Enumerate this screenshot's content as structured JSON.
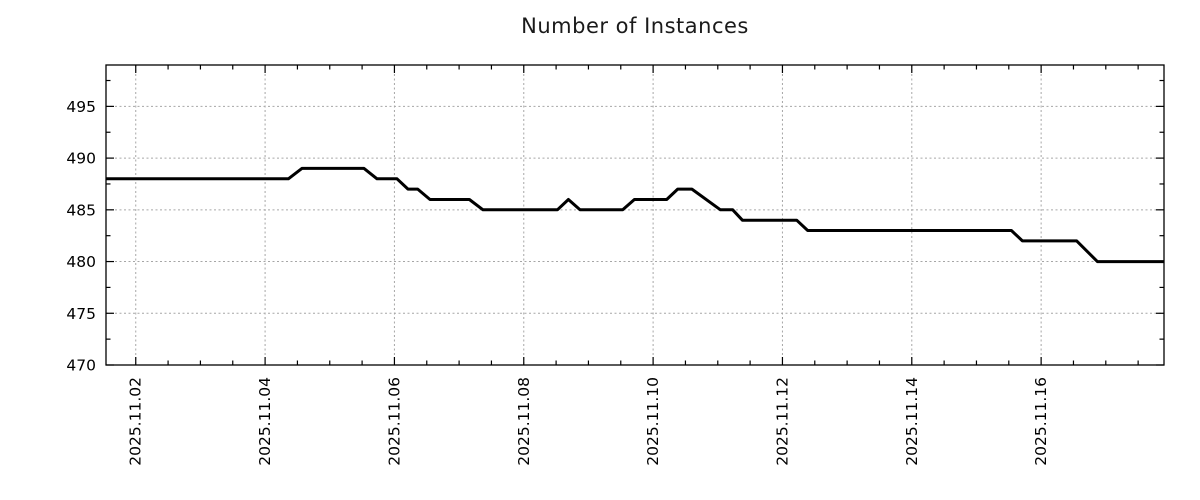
{
  "figure": {
    "background": "#ffffff"
  },
  "chart_data": {
    "type": "line",
    "title": "Number of Instances",
    "xlabel": "",
    "ylabel": "",
    "x_unit": "date (day of November 2025, fractional)",
    "x_domain": [
      1.54,
      17.9
    ],
    "y_domain": [
      470,
      499
    ],
    "x_major_ticks": [
      {
        "value": 2,
        "label": "2025.11.02"
      },
      {
        "value": 4,
        "label": "2025.11.04"
      },
      {
        "value": 6,
        "label": "2025.11.06"
      },
      {
        "value": 8,
        "label": "2025.11.08"
      },
      {
        "value": 10,
        "label": "2025.11.10"
      },
      {
        "value": 12,
        "label": "2025.11.12"
      },
      {
        "value": 14,
        "label": "2025.11.14"
      },
      {
        "value": 16,
        "label": "2025.11.16"
      }
    ],
    "x_minor_step": 0.5,
    "y_major_ticks": [
      {
        "value": 470,
        "label": "470"
      },
      {
        "value": 475,
        "label": "475"
      },
      {
        "value": 480,
        "label": "480"
      },
      {
        "value": 485,
        "label": "485"
      },
      {
        "value": 490,
        "label": "490"
      },
      {
        "value": 495,
        "label": "495"
      }
    ],
    "y_minor_step": 2.5,
    "grid": {
      "show": true,
      "style": "dotted",
      "on": "major-ticks"
    },
    "legend": "none",
    "series": [
      {
        "name": "Number of Instances",
        "color": "#000000",
        "line_width": 3,
        "points": [
          [
            1.54,
            488
          ],
          [
            4.36,
            488
          ],
          [
            4.57,
            489
          ],
          [
            5.53,
            489
          ],
          [
            5.73,
            488
          ],
          [
            6.04,
            488
          ],
          [
            6.21,
            487
          ],
          [
            6.36,
            487
          ],
          [
            6.55,
            486
          ],
          [
            7.16,
            486
          ],
          [
            7.37,
            485
          ],
          [
            8.52,
            485
          ],
          [
            8.69,
            486
          ],
          [
            8.87,
            485
          ],
          [
            9.53,
            485
          ],
          [
            9.71,
            486
          ],
          [
            10.21,
            486
          ],
          [
            10.38,
            487
          ],
          [
            10.6,
            487
          ],
          [
            11.04,
            485
          ],
          [
            11.23,
            485
          ],
          [
            11.38,
            484
          ],
          [
            12.22,
            484
          ],
          [
            12.39,
            483
          ],
          [
            15.54,
            483
          ],
          [
            15.71,
            482
          ],
          [
            16.55,
            482
          ],
          [
            16.87,
            480
          ],
          [
            17.9,
            480
          ]
        ]
      }
    ]
  },
  "style": {
    "axis_color": "#000000",
    "text_color": "#000000",
    "grid_color": "#a6a6a6",
    "title_color": "#1a1a1a"
  }
}
